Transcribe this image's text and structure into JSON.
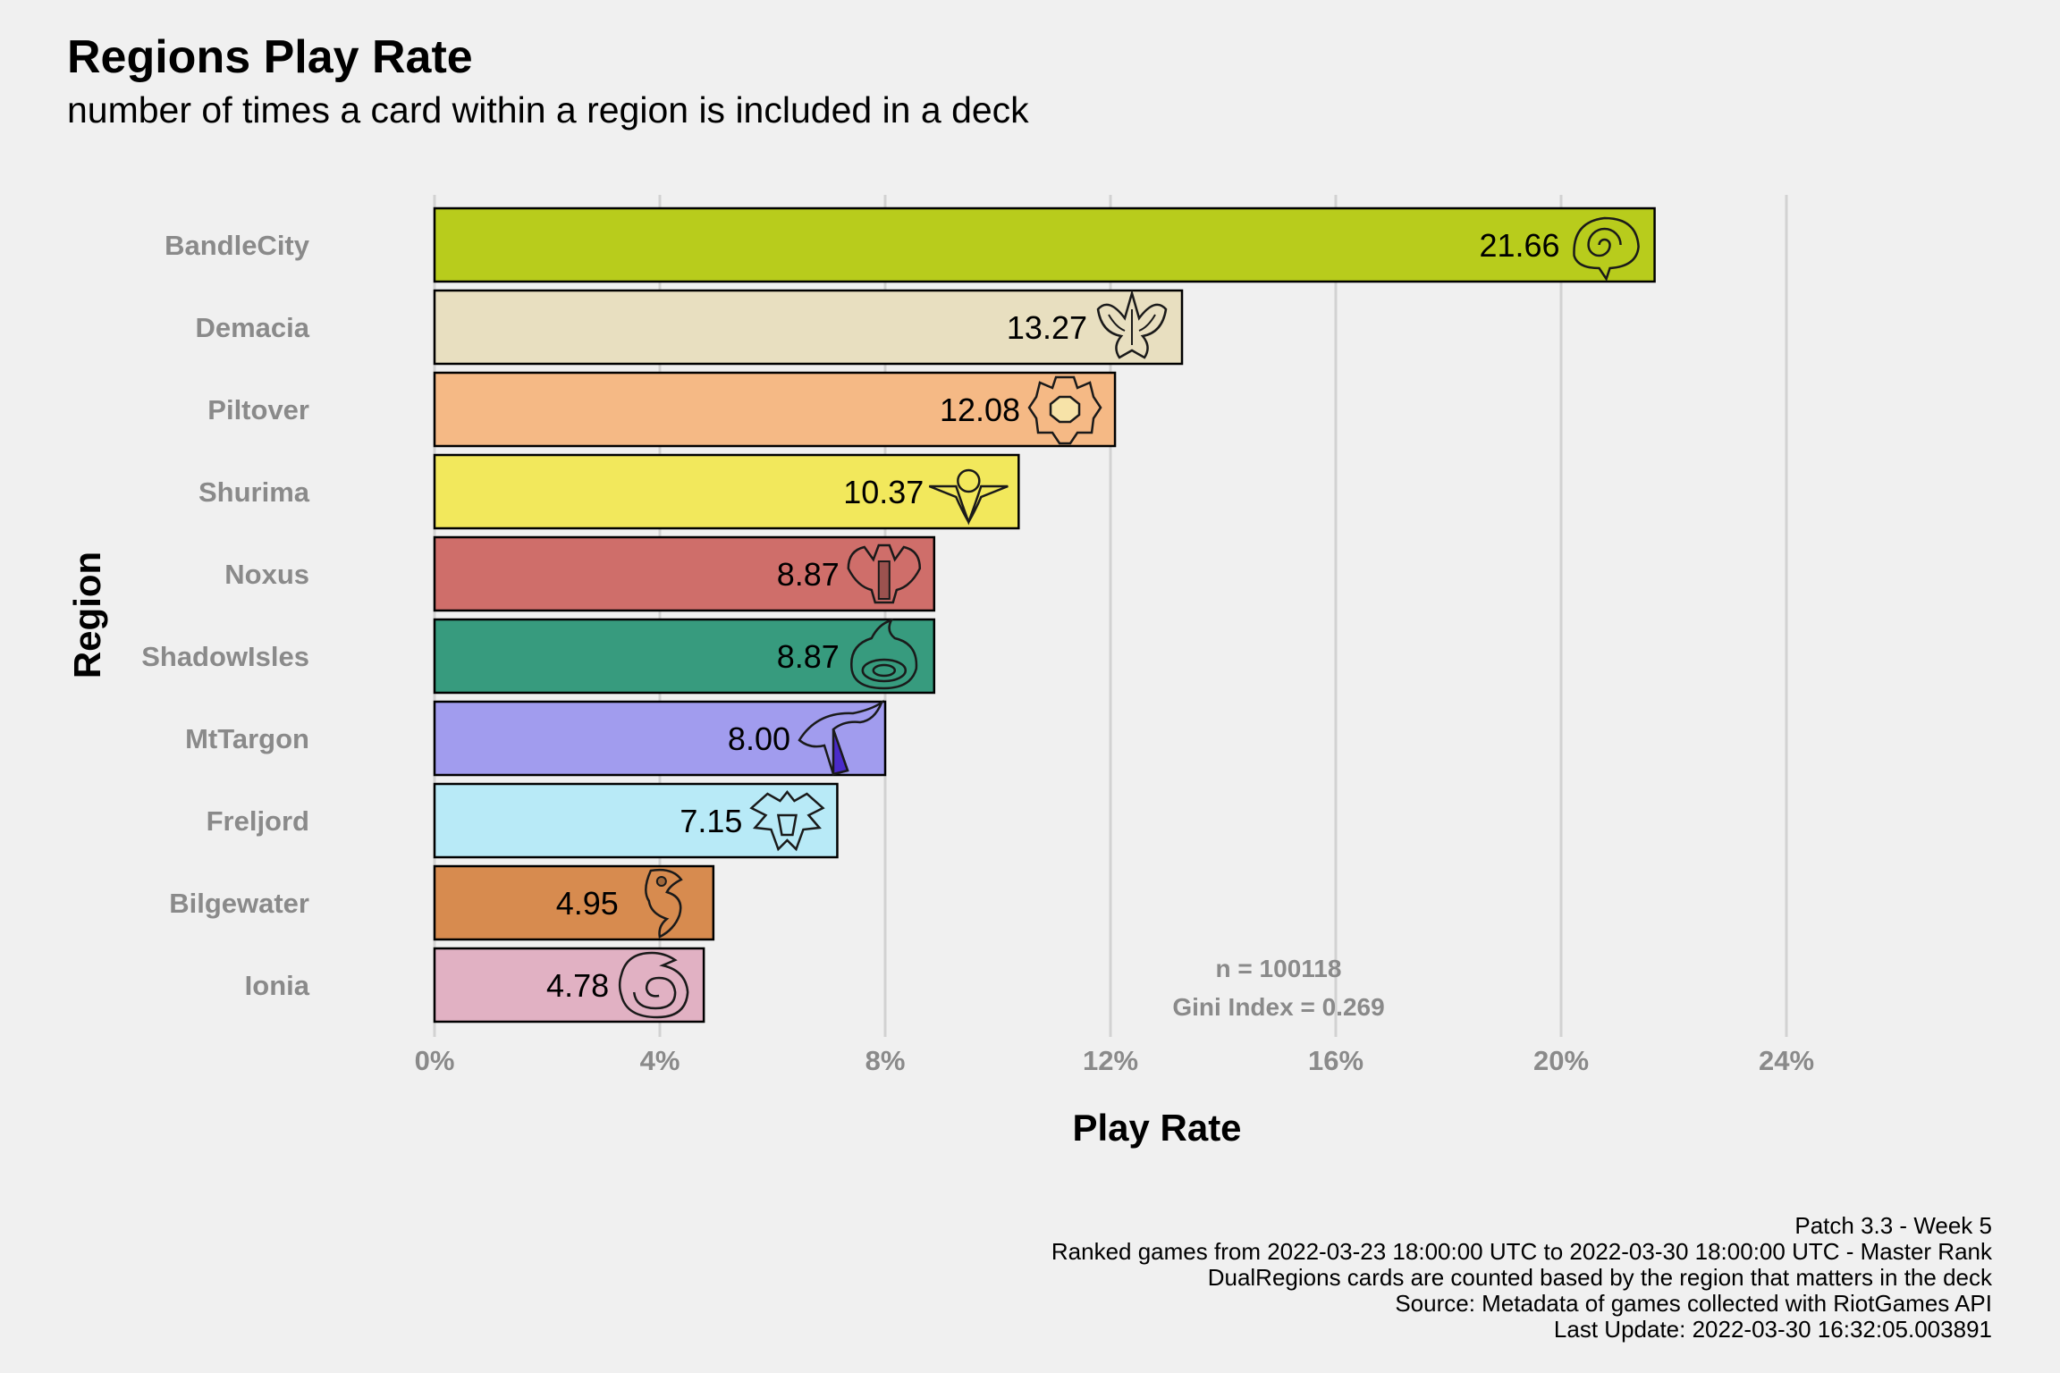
{
  "header": {
    "title": "Regions Play Rate",
    "subtitle": "number of times a card within a region is included in a deck"
  },
  "chart_data": {
    "type": "bar",
    "orientation": "horizontal",
    "xlabel": "Play Rate",
    "ylabel": "Region",
    "xlim": [
      0,
      24
    ],
    "x_ticks": [
      "0%",
      "4%",
      "8%",
      "12%",
      "16%",
      "20%",
      "24%"
    ],
    "grid": "vertical",
    "legend": "none",
    "categories": [
      "BandleCity",
      "Demacia",
      "Piltover",
      "Shurima",
      "Noxus",
      "ShadowIsles",
      "MtTargon",
      "Freljord",
      "Bilgewater",
      "Ionia"
    ],
    "values": [
      21.66,
      13.27,
      12.08,
      10.37,
      8.87,
      8.87,
      8.0,
      7.15,
      4.95,
      4.78
    ],
    "labels": [
      "21.66",
      "13.27",
      "12.08",
      "10.37",
      "8.87",
      "8.87",
      "8.00",
      "7.15",
      "4.95",
      "4.78"
    ],
    "colors": [
      "#b8cc1c",
      "#e8dfc0",
      "#f5b985",
      "#f2e85c",
      "#cf6e6a",
      "#379b7e",
      "#a19cee",
      "#b8eaf7",
      "#d78b4f",
      "#e1b1c3"
    ],
    "icons": [
      "bandlecity-icon",
      "demacia-icon",
      "piltover-icon",
      "shurima-icon",
      "noxus-icon",
      "shadowisles-icon",
      "mttargon-icon",
      "freljord-icon",
      "bilgewater-icon",
      "ionia-icon"
    ],
    "annotation": [
      "n = 100118",
      "Gini Index = 0.269"
    ]
  },
  "caption": [
    "Patch 3.3 - Week 5",
    "Ranked games from 2022-03-23 18:00:00 UTC to 2022-03-30 18:00:00 UTC - Master Rank",
    "DualRegions cards are counted based by the region that matters in the deck",
    "Source: Metadata of games collected with RiotGames API",
    "Last Update: 2022-03-30 16:32:05.003891"
  ]
}
